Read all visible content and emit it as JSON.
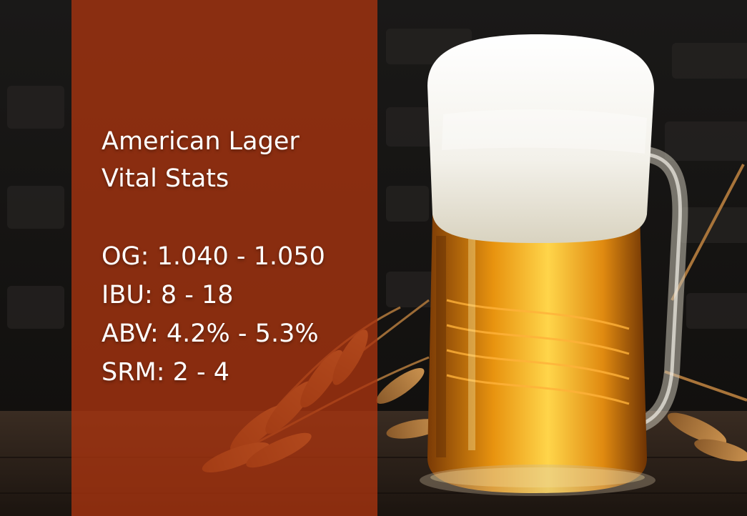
{
  "slide": {
    "title_lines": [
      "American Lager",
      "Vital Stats"
    ],
    "stats": [
      "OG: 1.040 - 1.050",
      "IBU: 8 - 18",
      "ABV: 4.2% - 5.3%",
      "SRM: 2 - 4"
    ]
  },
  "colors": {
    "overlay": "#aa340f",
    "text": "#ffffff",
    "beer": "#e8930f",
    "foam": "#f3f1ea"
  }
}
